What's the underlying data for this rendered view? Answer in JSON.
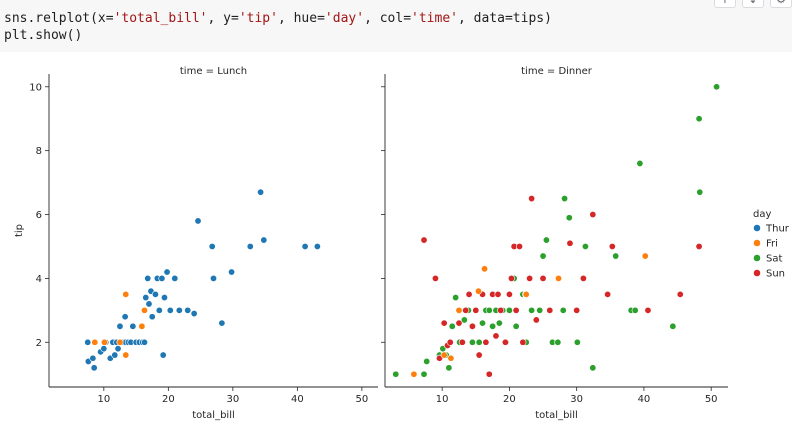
{
  "code": {
    "line1": {
      "prefix": "sns.relplot(x=",
      "x": "'total_bill'",
      "s1": ", y=",
      "y": "'tip'",
      "s2": ", hue=",
      "hue": "'day'",
      "s3": ", col=",
      "col": "'time'",
      "s4": ", data=tips)"
    },
    "line2": "plt.show()"
  },
  "toolbar": {
    "icons": [
      "arrow-up-icon",
      "arrow-down-icon",
      "gear-icon"
    ],
    "glyphs": [
      "↑",
      "↓",
      "⚙"
    ]
  },
  "colors": {
    "Thur": "#1f77b4",
    "Fri": "#ff7f0e",
    "Sat": "#2ca02c",
    "Sun": "#d62728",
    "code_bg": "#f7f7f7"
  },
  "chart_data": {
    "type": "scatter",
    "x_key": "total_bill",
    "y_key": "tip",
    "xlabel": "total_bill",
    "ylabel": "tip",
    "xlim": [
      1.5,
      52.5
    ],
    "ylim": [
      0.6,
      10.4
    ],
    "xticks": [
      10,
      20,
      30,
      40,
      50
    ],
    "yticks": [
      2,
      4,
      6,
      8,
      10
    ],
    "legend": {
      "title": "day",
      "entries": [
        "Thur",
        "Fri",
        "Sat",
        "Sun"
      ],
      "position": "right"
    },
    "panels": [
      {
        "title": "time = Lunch",
        "points": [
          {
            "x": 7.5,
            "y": 2.0,
            "day": "Thur"
          },
          {
            "x": 7.6,
            "y": 1.4,
            "day": "Thur"
          },
          {
            "x": 8.3,
            "y": 1.5,
            "day": "Thur"
          },
          {
            "x": 8.5,
            "y": 1.2,
            "day": "Thur"
          },
          {
            "x": 9.5,
            "y": 1.7,
            "day": "Thur"
          },
          {
            "x": 10.0,
            "y": 1.8,
            "day": "Thur"
          },
          {
            "x": 10.3,
            "y": 2.0,
            "day": "Thur"
          },
          {
            "x": 11.0,
            "y": 1.5,
            "day": "Thur"
          },
          {
            "x": 11.4,
            "y": 2.0,
            "day": "Thur"
          },
          {
            "x": 11.7,
            "y": 1.6,
            "day": "Thur"
          },
          {
            "x": 12.0,
            "y": 2.0,
            "day": "Thur"
          },
          {
            "x": 12.2,
            "y": 1.8,
            "day": "Thur"
          },
          {
            "x": 12.5,
            "y": 2.5,
            "day": "Thur"
          },
          {
            "x": 12.7,
            "y": 2.0,
            "day": "Thur"
          },
          {
            "x": 13.0,
            "y": 2.0,
            "day": "Thur"
          },
          {
            "x": 13.3,
            "y": 2.8,
            "day": "Thur"
          },
          {
            "x": 13.4,
            "y": 2.0,
            "day": "Thur"
          },
          {
            "x": 13.8,
            "y": 2.0,
            "day": "Thur"
          },
          {
            "x": 14.2,
            "y": 2.0,
            "day": "Thur"
          },
          {
            "x": 14.5,
            "y": 2.5,
            "day": "Thur"
          },
          {
            "x": 15.0,
            "y": 2.0,
            "day": "Thur"
          },
          {
            "x": 15.5,
            "y": 2.0,
            "day": "Thur"
          },
          {
            "x": 16.0,
            "y": 2.0,
            "day": "Thur"
          },
          {
            "x": 16.3,
            "y": 2.0,
            "day": "Thur"
          },
          {
            "x": 16.5,
            "y": 3.4,
            "day": "Thur"
          },
          {
            "x": 16.8,
            "y": 4.0,
            "day": "Thur"
          },
          {
            "x": 17.0,
            "y": 3.2,
            "day": "Thur"
          },
          {
            "x": 17.3,
            "y": 3.6,
            "day": "Thur"
          },
          {
            "x": 17.5,
            "y": 2.8,
            "day": "Thur"
          },
          {
            "x": 18.0,
            "y": 3.5,
            "day": "Thur"
          },
          {
            "x": 18.3,
            "y": 4.0,
            "day": "Thur"
          },
          {
            "x": 18.6,
            "y": 3.0,
            "day": "Thur"
          },
          {
            "x": 19.0,
            "y": 4.0,
            "day": "Thur"
          },
          {
            "x": 19.4,
            "y": 3.4,
            "day": "Thur"
          },
          {
            "x": 19.2,
            "y": 1.6,
            "day": "Thur"
          },
          {
            "x": 19.8,
            "y": 4.2,
            "day": "Thur"
          },
          {
            "x": 20.3,
            "y": 3.0,
            "day": "Thur"
          },
          {
            "x": 21.0,
            "y": 4.0,
            "day": "Thur"
          },
          {
            "x": 21.7,
            "y": 3.0,
            "day": "Thur"
          },
          {
            "x": 23.0,
            "y": 3.0,
            "day": "Thur"
          },
          {
            "x": 24.0,
            "y": 2.9,
            "day": "Thur"
          },
          {
            "x": 24.6,
            "y": 5.8,
            "day": "Thur"
          },
          {
            "x": 26.8,
            "y": 5.0,
            "day": "Thur"
          },
          {
            "x": 27.0,
            "y": 4.0,
            "day": "Thur"
          },
          {
            "x": 28.3,
            "y": 2.6,
            "day": "Thur"
          },
          {
            "x": 29.8,
            "y": 4.2,
            "day": "Thur"
          },
          {
            "x": 32.7,
            "y": 5.0,
            "day": "Thur"
          },
          {
            "x": 34.3,
            "y": 6.7,
            "day": "Thur"
          },
          {
            "x": 34.8,
            "y": 5.2,
            "day": "Thur"
          },
          {
            "x": 41.2,
            "y": 5.0,
            "day": "Thur"
          },
          {
            "x": 43.1,
            "y": 5.0,
            "day": "Thur"
          },
          {
            "x": 8.6,
            "y": 2.0,
            "day": "Fri"
          },
          {
            "x": 10.1,
            "y": 2.0,
            "day": "Fri"
          },
          {
            "x": 12.5,
            "y": 2.0,
            "day": "Fri"
          },
          {
            "x": 13.4,
            "y": 3.5,
            "day": "Fri"
          },
          {
            "x": 13.4,
            "y": 1.6,
            "day": "Fri"
          },
          {
            "x": 15.9,
            "y": 2.5,
            "day": "Fri"
          },
          {
            "x": 16.3,
            "y": 3.0,
            "day": "Fri"
          }
        ]
      },
      {
        "title": "time = Dinner",
        "points": [
          {
            "x": 3.1,
            "y": 1.0,
            "day": "Sat"
          },
          {
            "x": 7.3,
            "y": 1.0,
            "day": "Sat"
          },
          {
            "x": 7.7,
            "y": 1.4,
            "day": "Sat"
          },
          {
            "x": 9.6,
            "y": 1.6,
            "day": "Sat"
          },
          {
            "x": 10.1,
            "y": 1.8,
            "day": "Sat"
          },
          {
            "x": 10.6,
            "y": 1.6,
            "day": "Sat"
          },
          {
            "x": 11.0,
            "y": 1.2,
            "day": "Sat"
          },
          {
            "x": 11.5,
            "y": 2.5,
            "day": "Sat"
          },
          {
            "x": 12.0,
            "y": 3.4,
            "day": "Sat"
          },
          {
            "x": 12.6,
            "y": 2.0,
            "day": "Sat"
          },
          {
            "x": 13.3,
            "y": 2.7,
            "day": "Sat"
          },
          {
            "x": 13.9,
            "y": 3.0,
            "day": "Sat"
          },
          {
            "x": 14.5,
            "y": 2.0,
            "day": "Sat"
          },
          {
            "x": 15.0,
            "y": 3.0,
            "day": "Sat"
          },
          {
            "x": 15.5,
            "y": 2.0,
            "day": "Sat"
          },
          {
            "x": 16.0,
            "y": 2.6,
            "day": "Sat"
          },
          {
            "x": 16.5,
            "y": 3.0,
            "day": "Sat"
          },
          {
            "x": 17.0,
            "y": 3.0,
            "day": "Sat"
          },
          {
            "x": 17.5,
            "y": 2.5,
            "day": "Sat"
          },
          {
            "x": 18.0,
            "y": 3.0,
            "day": "Sat"
          },
          {
            "x": 18.5,
            "y": 2.6,
            "day": "Sat"
          },
          {
            "x": 19.0,
            "y": 3.0,
            "day": "Sat"
          },
          {
            "x": 19.5,
            "y": 2.0,
            "day": "Sat"
          },
          {
            "x": 20.0,
            "y": 3.0,
            "day": "Sat"
          },
          {
            "x": 20.7,
            "y": 4.0,
            "day": "Sat"
          },
          {
            "x": 21.0,
            "y": 2.5,
            "day": "Sat"
          },
          {
            "x": 22.0,
            "y": 3.5,
            "day": "Sat"
          },
          {
            "x": 22.5,
            "y": 2.0,
            "day": "Sat"
          },
          {
            "x": 23.3,
            "y": 3.0,
            "day": "Sat"
          },
          {
            "x": 24.5,
            "y": 3.0,
            "day": "Sat"
          },
          {
            "x": 25.0,
            "y": 4.7,
            "day": "Sat"
          },
          {
            "x": 25.5,
            "y": 5.2,
            "day": "Sat"
          },
          {
            "x": 26.4,
            "y": 2.0,
            "day": "Sat"
          },
          {
            "x": 27.2,
            "y": 2.0,
            "day": "Sat"
          },
          {
            "x": 28.0,
            "y": 3.0,
            "day": "Sat"
          },
          {
            "x": 28.2,
            "y": 6.5,
            "day": "Sat"
          },
          {
            "x": 28.9,
            "y": 5.9,
            "day": "Sat"
          },
          {
            "x": 30.1,
            "y": 2.0,
            "day": "Sat"
          },
          {
            "x": 31.3,
            "y": 5.0,
            "day": "Sat"
          },
          {
            "x": 32.4,
            "y": 1.2,
            "day": "Sat"
          },
          {
            "x": 35.8,
            "y": 4.7,
            "day": "Sat"
          },
          {
            "x": 38.1,
            "y": 3.0,
            "day": "Sat"
          },
          {
            "x": 38.7,
            "y": 3.0,
            "day": "Sat"
          },
          {
            "x": 39.4,
            "y": 7.6,
            "day": "Sat"
          },
          {
            "x": 44.3,
            "y": 2.5,
            "day": "Sat"
          },
          {
            "x": 48.2,
            "y": 9.0,
            "day": "Sat"
          },
          {
            "x": 48.3,
            "y": 6.7,
            "day": "Sat"
          },
          {
            "x": 50.8,
            "y": 10.0,
            "day": "Sat"
          },
          {
            "x": 7.3,
            "y": 5.2,
            "day": "Sun"
          },
          {
            "x": 9.0,
            "y": 4.0,
            "day": "Sun"
          },
          {
            "x": 9.6,
            "y": 1.5,
            "day": "Sun"
          },
          {
            "x": 10.3,
            "y": 2.6,
            "day": "Sun"
          },
          {
            "x": 10.8,
            "y": 1.9,
            "day": "Sun"
          },
          {
            "x": 11.2,
            "y": 2.0,
            "day": "Sun"
          },
          {
            "x": 12.5,
            "y": 2.6,
            "day": "Sun"
          },
          {
            "x": 13.0,
            "y": 2.0,
            "day": "Sun"
          },
          {
            "x": 13.5,
            "y": 3.0,
            "day": "Sun"
          },
          {
            "x": 14.0,
            "y": 3.5,
            "day": "Sun"
          },
          {
            "x": 14.5,
            "y": 2.5,
            "day": "Sun"
          },
          {
            "x": 15.0,
            "y": 3.0,
            "day": "Sun"
          },
          {
            "x": 15.5,
            "y": 1.6,
            "day": "Sun"
          },
          {
            "x": 16.0,
            "y": 3.5,
            "day": "Sun"
          },
          {
            "x": 16.5,
            "y": 2.0,
            "day": "Sun"
          },
          {
            "x": 17.0,
            "y": 1.0,
            "day": "Sun"
          },
          {
            "x": 17.5,
            "y": 3.5,
            "day": "Sun"
          },
          {
            "x": 18.0,
            "y": 2.2,
            "day": "Sun"
          },
          {
            "x": 18.3,
            "y": 3.5,
            "day": "Sun"
          },
          {
            "x": 18.7,
            "y": 3.0,
            "day": "Sun"
          },
          {
            "x": 19.4,
            "y": 2.0,
            "day": "Sun"
          },
          {
            "x": 20.0,
            "y": 3.5,
            "day": "Sun"
          },
          {
            "x": 20.3,
            "y": 4.0,
            "day": "Sun"
          },
          {
            "x": 20.7,
            "y": 5.0,
            "day": "Sun"
          },
          {
            "x": 21.0,
            "y": 3.0,
            "day": "Sun"
          },
          {
            "x": 21.5,
            "y": 5.0,
            "day": "Sun"
          },
          {
            "x": 22.0,
            "y": 2.0,
            "day": "Sun"
          },
          {
            "x": 22.4,
            "y": 3.5,
            "day": "Sun"
          },
          {
            "x": 23.0,
            "y": 4.0,
            "day": "Sun"
          },
          {
            "x": 23.3,
            "y": 6.5,
            "day": "Sun"
          },
          {
            "x": 24.0,
            "y": 2.7,
            "day": "Sun"
          },
          {
            "x": 25.0,
            "y": 4.0,
            "day": "Sun"
          },
          {
            "x": 26.0,
            "y": 3.0,
            "day": "Sun"
          },
          {
            "x": 29.0,
            "y": 5.1,
            "day": "Sun"
          },
          {
            "x": 30.0,
            "y": 3.0,
            "day": "Sun"
          },
          {
            "x": 31.0,
            "y": 4.0,
            "day": "Sun"
          },
          {
            "x": 32.4,
            "y": 6.0,
            "day": "Sun"
          },
          {
            "x": 34.6,
            "y": 3.5,
            "day": "Sun"
          },
          {
            "x": 35.3,
            "y": 5.0,
            "day": "Sun"
          },
          {
            "x": 40.6,
            "y": 3.0,
            "day": "Sun"
          },
          {
            "x": 45.4,
            "y": 3.5,
            "day": "Sun"
          },
          {
            "x": 48.2,
            "y": 5.0,
            "day": "Sun"
          },
          {
            "x": 5.8,
            "y": 1.0,
            "day": "Fri"
          },
          {
            "x": 10.3,
            "y": 1.6,
            "day": "Fri"
          },
          {
            "x": 11.3,
            "y": 1.5,
            "day": "Fri"
          },
          {
            "x": 12.5,
            "y": 3.0,
            "day": "Fri"
          },
          {
            "x": 15.4,
            "y": 3.6,
            "day": "Fri"
          },
          {
            "x": 16.3,
            "y": 4.3,
            "day": "Fri"
          },
          {
            "x": 22.5,
            "y": 3.5,
            "day": "Fri"
          },
          {
            "x": 27.3,
            "y": 4.0,
            "day": "Fri"
          },
          {
            "x": 40.2,
            "y": 4.7,
            "day": "Fri"
          }
        ]
      }
    ]
  }
}
